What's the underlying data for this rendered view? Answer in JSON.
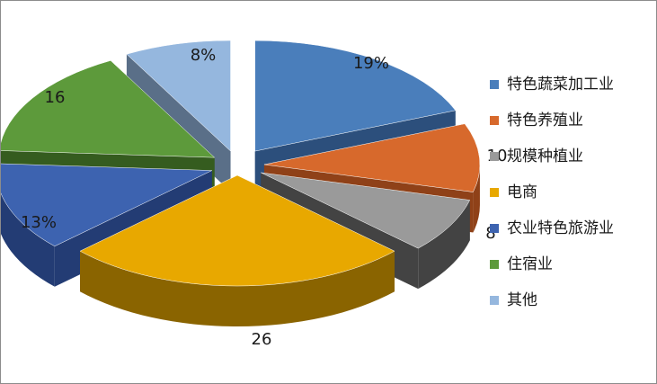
{
  "chart_data": {
    "type": "pie",
    "style": "3d-exploded",
    "legend_position": "right",
    "categories": [
      "特色蔬菜加工业",
      "特色养殖业",
      "规模种植业",
      "电商",
      "农业特色旅游业",
      "住宿业",
      "其他"
    ],
    "values": [
      19,
      10,
      8,
      26,
      13,
      16,
      8
    ],
    "data_labels": [
      "19%",
      "10",
      "8",
      "26",
      "13%",
      "16",
      "8%"
    ],
    "colors": [
      "#4a7ebb",
      "#d7692c",
      "#9a9a9a",
      "#e8a800",
      "#3d63b0",
      "#5d9a3b",
      "#95b7de"
    ],
    "side_colors": [
      "#2c4f7c",
      "#8f4118",
      "#434343",
      "#8a6400",
      "#233c74",
      "#355c1f",
      "#5a6f88"
    ]
  }
}
